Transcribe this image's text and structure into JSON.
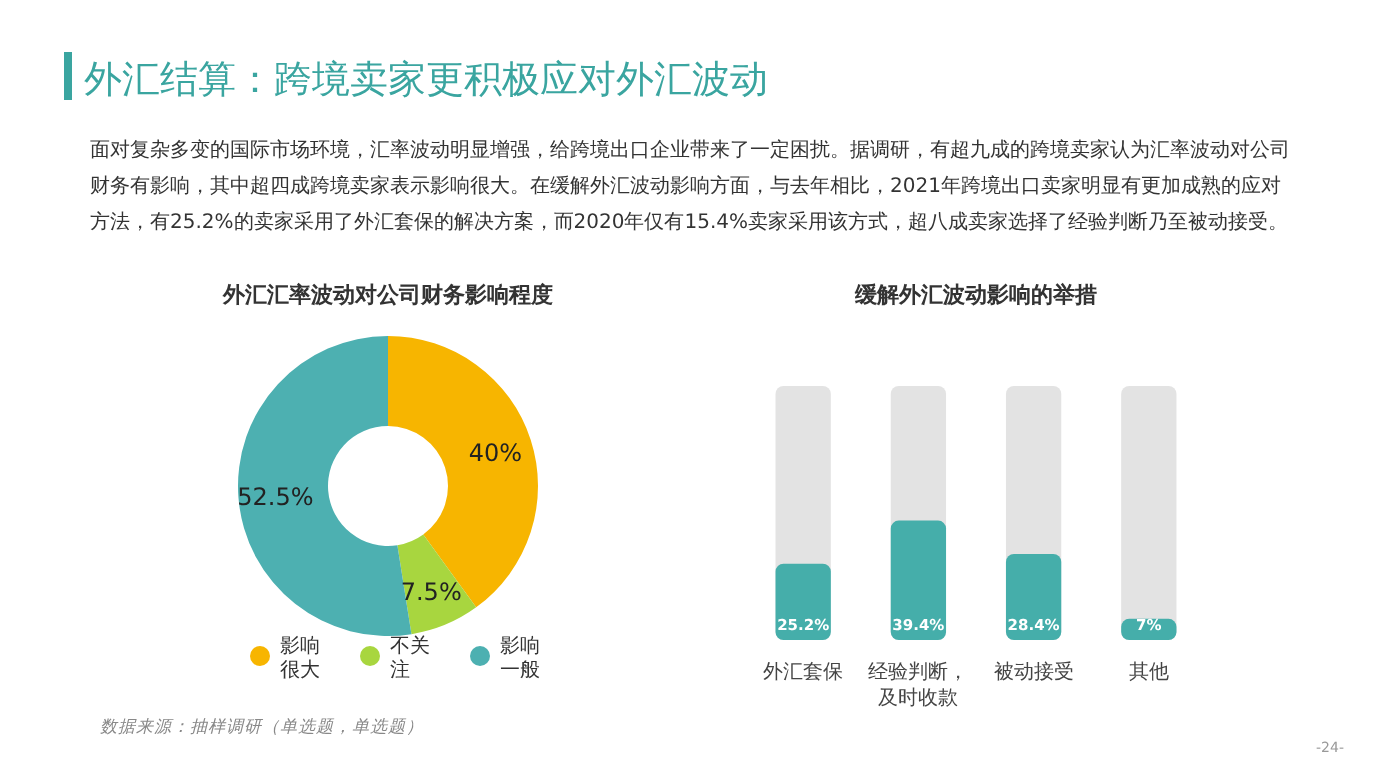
{
  "chart_data": [
    {
      "type": "other",
      "title": "外汇结算：跨境卖家更积极应对外汇波动",
      "subtitle": "面对复杂多变的国际市场环境，汇率波动明显增强，给跨境出口企业带来了一定困扰。据调研，有超九成的跨境卖家认为汇率波动对公司财务有影响，其中超四成跨境卖家表示影响很大。在缓解外汇波动影响方面，与去年相比，2021年跨境出口卖家明显有更加成熟的应对方法，有25.2%的卖家采用了外汇套保的解决方案，而2020年仅有15.4%卖家采用该方式，超八成卖家选择了经验判断乃至被动接受。"
    },
    {
      "type": "donut",
      "title": "外汇汇率波动对公司财务影响程度",
      "categories": [
        "影响很大",
        "不关注",
        "影响一般"
      ],
      "values": [
        40,
        7.5,
        52.5
      ],
      "colors": [
        "#f7b500",
        "#a8d63f",
        "#4db0b1"
      ],
      "value_labels": [
        "40%",
        "7.5%",
        "52.5%"
      ],
      "legend": "bottom",
      "annotations": [
        "数据来源：抽样调研（单选题，单选题）"
      ]
    },
    {
      "type": "bar",
      "title": "缓解外汇波动影响的举措",
      "categories": [
        "外汇套保",
        "经验判断，及时收款",
        "被动接受",
        "其他"
      ],
      "values": [
        25.2,
        39.4,
        28.4,
        7
      ],
      "color": "#45aeaa",
      "value_labels": [
        "25.2%",
        "39.4%",
        "28.4%",
        "7%"
      ],
      "annotations": [
        "-24-"
      ]
    }
  ]
}
